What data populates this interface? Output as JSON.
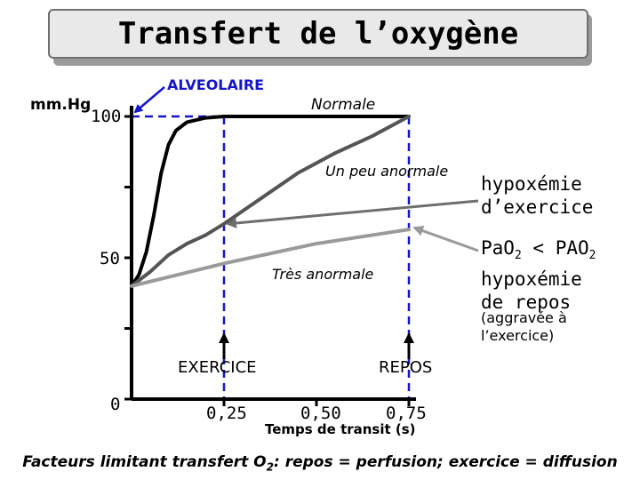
{
  "title": "Transfert de l’oxygène",
  "chart_data": {
    "type": "line",
    "ylabel": "mm.Hg",
    "xlabel": "Temps de transit (s)",
    "x_ticks": [
      "0,25",
      "0,50",
      "0,75"
    ],
    "x_tick_values": [
      0.25,
      0.5,
      0.75
    ],
    "y_ticks": [
      "0",
      "50",
      "100"
    ],
    "y_tick_values": [
      0,
      50,
      100
    ],
    "y_minor_ticks": [
      25,
      75
    ],
    "xlim": [
      0,
      0.75
    ],
    "ylim": [
      0,
      100
    ],
    "alveolar_value": 100,
    "series": [
      {
        "name": "Normale",
        "color": "#000000",
        "points": [
          [
            0,
            40
          ],
          [
            0.02,
            44
          ],
          [
            0.04,
            52
          ],
          [
            0.06,
            65
          ],
          [
            0.08,
            80
          ],
          [
            0.1,
            90
          ],
          [
            0.12,
            95
          ],
          [
            0.15,
            98
          ],
          [
            0.2,
            99.5
          ],
          [
            0.25,
            100
          ],
          [
            0.5,
            100
          ],
          [
            0.75,
            100
          ]
        ]
      },
      {
        "name": "Un peu anormale",
        "color": "#555555",
        "points": [
          [
            0,
            40
          ],
          [
            0.05,
            45
          ],
          [
            0.1,
            51
          ],
          [
            0.15,
            55
          ],
          [
            0.2,
            58
          ],
          [
            0.25,
            62
          ],
          [
            0.35,
            71
          ],
          [
            0.45,
            80
          ],
          [
            0.55,
            87
          ],
          [
            0.65,
            93
          ],
          [
            0.75,
            100
          ]
        ]
      },
      {
        "name": "Très anormale",
        "color": "#9a9a9a",
        "points": [
          [
            0,
            40
          ],
          [
            0.25,
            48
          ],
          [
            0.5,
            55
          ],
          [
            0.75,
            60
          ]
        ]
      }
    ],
    "annotations": {
      "alveolar": "ALVEOLAIRE",
      "normale": "Normale",
      "un_peu": "Un peu anormale",
      "tres": "Très anormale",
      "exercice": "EXERCICE",
      "repos": "REPOS"
    }
  },
  "side": {
    "hypox_ex_1": "hypoxémie",
    "hypox_ex_2": "d’exercice",
    "pao2_a": "PaO",
    "pao2_sub": "2",
    "pao2_lt": " < PAO",
    "pao2_sub2": "2",
    "hypox_rep_1": "hypoxémie",
    "hypox_rep_2": "de repos",
    "aggr_1": "(aggravée à",
    "aggr_2": "l’exercice)"
  },
  "footer": {
    "prefix": "Facteurs limitant transfert O",
    "sub": "2",
    "suffix": ": repos = perfusion; exercice = diffusion"
  },
  "colors": {
    "blue": "#1515c8",
    "normal": "#000000",
    "slight": "#555555",
    "severe": "#9a9a9a"
  }
}
